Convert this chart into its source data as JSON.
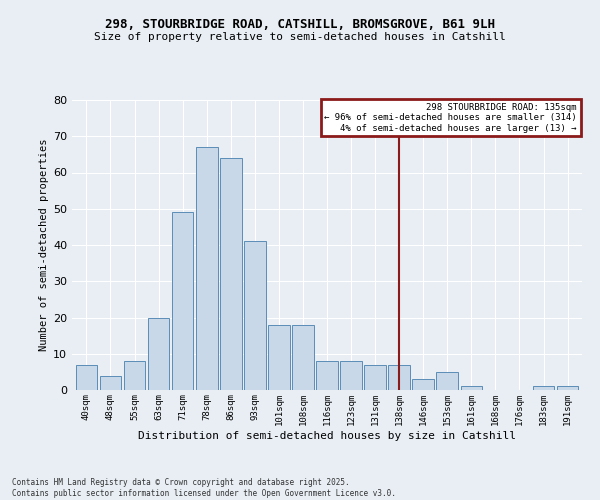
{
  "title_line1": "298, STOURBRIDGE ROAD, CATSHILL, BROMSGROVE, B61 9LH",
  "title_line2": "Size of property relative to semi-detached houses in Catshill",
  "xlabel": "Distribution of semi-detached houses by size in Catshill",
  "ylabel": "Number of semi-detached properties",
  "categories": [
    "40sqm",
    "48sqm",
    "55sqm",
    "63sqm",
    "71sqm",
    "78sqm",
    "86sqm",
    "93sqm",
    "101sqm",
    "108sqm",
    "116sqm",
    "123sqm",
    "131sqm",
    "138sqm",
    "146sqm",
    "153sqm",
    "161sqm",
    "168sqm",
    "176sqm",
    "183sqm",
    "191sqm"
  ],
  "values": [
    7,
    4,
    8,
    20,
    49,
    67,
    64,
    41,
    18,
    18,
    8,
    8,
    7,
    7,
    3,
    5,
    1,
    0,
    0,
    1,
    1
  ],
  "bar_color": "#c8d8e8",
  "bar_edge_color": "#5b8db8",
  "vline_x": 13,
  "vline_color": "#8b1a1a",
  "legend_title": "298 STOURBRIDGE ROAD: 135sqm",
  "legend_line1": "← 96% of semi-detached houses are smaller (314)",
  "legend_line2": "4% of semi-detached houses are larger (13) →",
  "legend_box_color": "#8b1a1a",
  "ylim": [
    0,
    80
  ],
  "yticks": [
    0,
    10,
    20,
    30,
    40,
    50,
    60,
    70,
    80
  ],
  "background_color": "#e8eef4",
  "grid_color": "#ffffff",
  "footnote1": "Contains HM Land Registry data © Crown copyright and database right 2025.",
  "footnote2": "Contains public sector information licensed under the Open Government Licence v3.0."
}
